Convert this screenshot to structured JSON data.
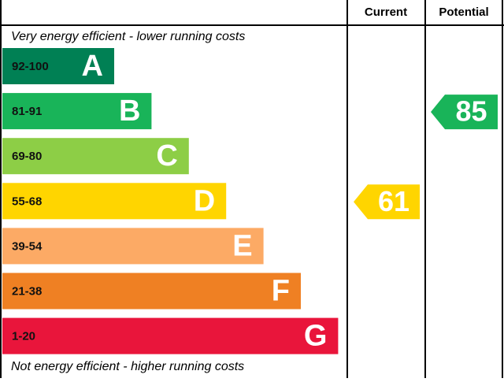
{
  "chart_data": {
    "type": "energy-rating",
    "columns": [
      "Current",
      "Potential"
    ],
    "top_label": "Very energy efficient - lower running costs",
    "bottom_label": "Not energy efficient - higher running costs",
    "categories": [
      "92-100",
      "81-91",
      "69-80",
      "55-68",
      "39-54",
      "21-38",
      "1-20"
    ],
    "letters": [
      "A",
      "B",
      "C",
      "D",
      "E",
      "F",
      "G"
    ],
    "colors": [
      "#008054",
      "#19b459",
      "#8dce46",
      "#ffd500",
      "#fcaa65",
      "#ef8023",
      "#e9153b"
    ],
    "current": 61,
    "potential": 85
  }
}
